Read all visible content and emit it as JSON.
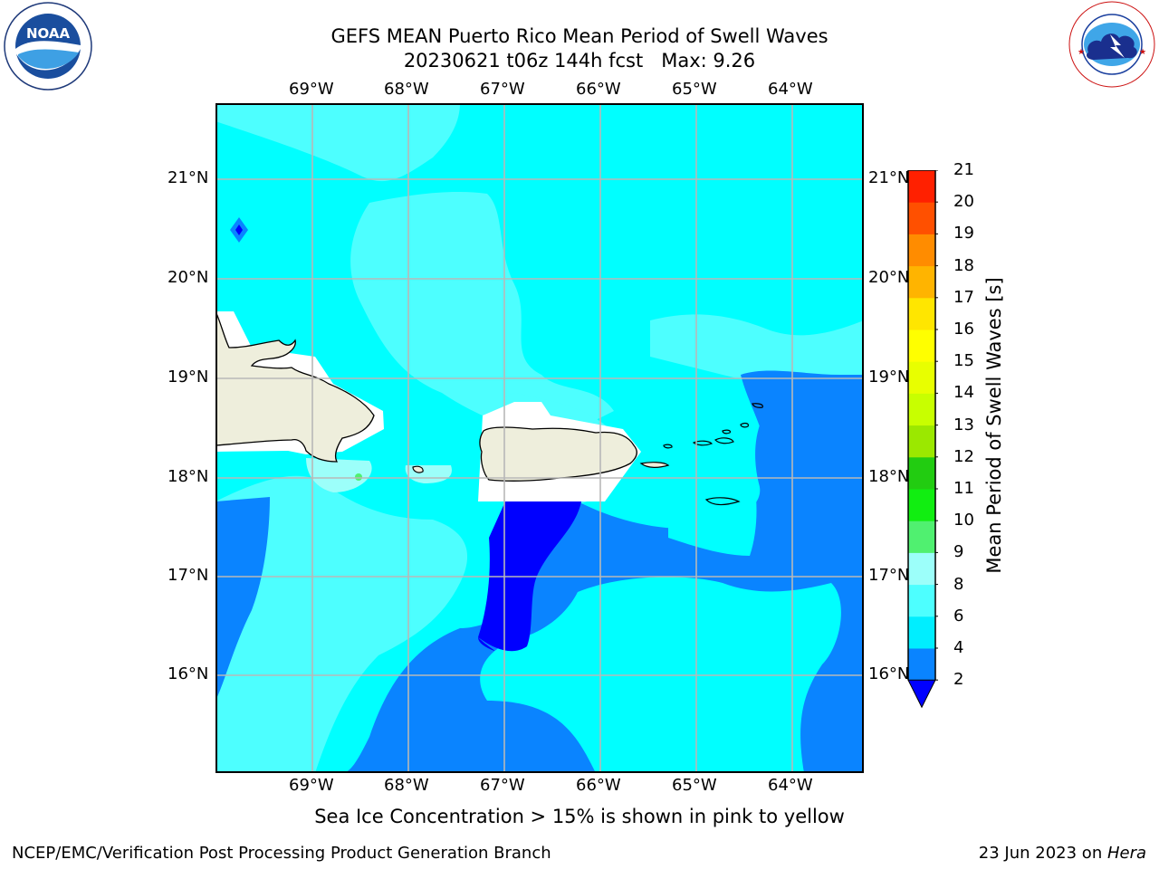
{
  "header": {
    "title_line1": "GEFS MEAN Puerto Rico Mean Period of Swell Waves",
    "title_line2": "20230621 t06z 144h fcst   Max: 9.26"
  },
  "logos": {
    "left": "NOAA",
    "left_ring_text": "NATIONAL OCEANIC AND ATMOSPHERIC ADMINISTRATION · U.S. DEPARTMENT OF COMMERCE",
    "right_ring_text": "NATIONAL WEATHER SERVICE"
  },
  "map": {
    "lon_labels": [
      "69°W",
      "68°W",
      "67°W",
      "66°W",
      "65°W",
      "64°W"
    ],
    "lat_labels": [
      "21°N",
      "20°N",
      "19°N",
      "18°N",
      "17°N",
      "16°N"
    ],
    "lon_range": [
      -70.0,
      -63.25
    ],
    "lat_range": [
      15.0,
      21.75
    ],
    "grid": true,
    "colors": {
      "land": "#eeeedc",
      "ocean_cyan": "#00ffff",
      "ocean_light_cyan": "#4dffff",
      "ocean_pale": "#9cfffa",
      "ocean_blue": "#0a84ff",
      "ocean_dark_blue": "#0000ff"
    }
  },
  "colorbar": {
    "title": "Mean Period of Swell Waves [s]",
    "levels": [
      "2",
      "4",
      "6",
      "8",
      "9",
      "10",
      "11",
      "12",
      "13",
      "14",
      "15",
      "16",
      "17",
      "18",
      "19",
      "20",
      "21"
    ],
    "colors": [
      "#0a84ff",
      "#00eeff",
      "#4dffff",
      "#9cfffa",
      "#50f070",
      "#11ee11",
      "#22cc11",
      "#9be800",
      "#c8ff00",
      "#e8ff00",
      "#ffff00",
      "#ffe600",
      "#ffb400",
      "#ff8c00",
      "#ff5000",
      "#ff2000"
    ],
    "extend_color": "#0000ff"
  },
  "notes": {
    "sea_ice": "Sea Ice Concentration > 15% is shown in pink to yellow"
  },
  "footer": {
    "left": "NCEP/EMC/Verification Post Processing Product Generation Branch",
    "right_date": "23 Jun 2023 on ",
    "right_host": "Hera"
  }
}
